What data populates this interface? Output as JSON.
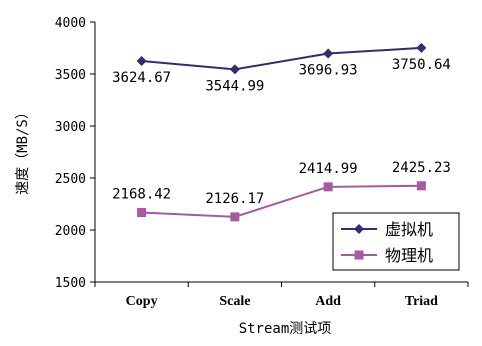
{
  "chart_data": {
    "type": "line",
    "categories": [
      "Copy",
      "Scale",
      "Add",
      "Triad"
    ],
    "series": [
      {
        "name": "虚拟机",
        "values": [
          3624.67,
          3544.99,
          3696.93,
          3750.64
        ],
        "color": "#2e2f6e",
        "marker": "diamond"
      },
      {
        "name": "物理机",
        "values": [
          2168.42,
          2126.17,
          2414.99,
          2425.23
        ],
        "color": "#a65aa0",
        "marker": "square"
      }
    ],
    "data_labels": [
      [
        "3624.67",
        "3544.99",
        "3696.93",
        "3750.64"
      ],
      [
        "2168.42",
        "2126.17",
        "2414.99",
        "2425.23"
      ]
    ],
    "xlabel": "Stream测试项",
    "ylabel": "速度（MB/S）",
    "ylim": [
      1500,
      4000
    ],
    "yticks": [
      1500,
      2000,
      2500,
      3000,
      3500,
      4000
    ],
    "grid": false,
    "legend_position": "bottom-right"
  }
}
